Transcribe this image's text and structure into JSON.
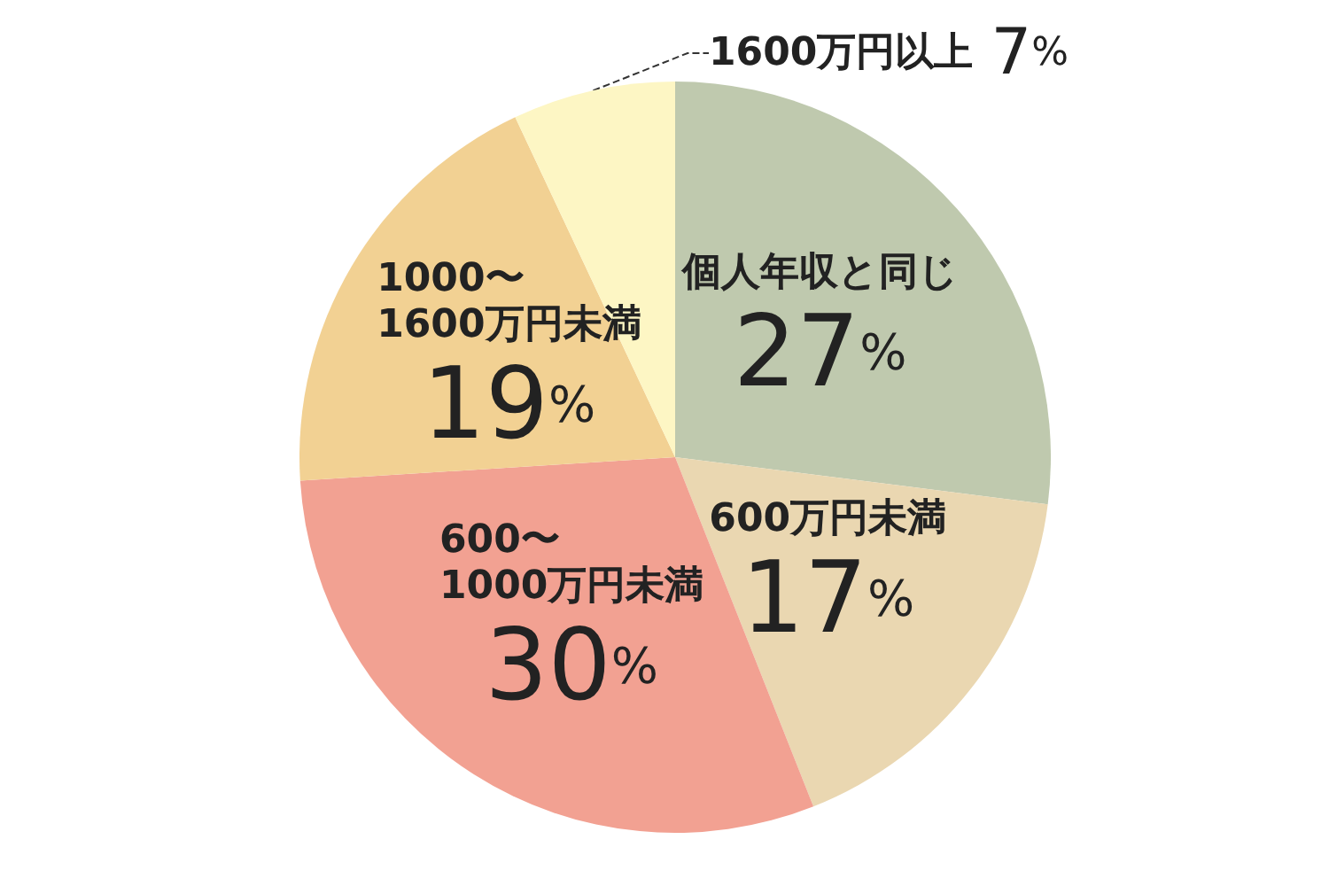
{
  "chart_data": {
    "type": "pie",
    "categories": [
      "個人年収と同じ",
      "600万円未満",
      "600〜\n1000万円未満",
      "1000〜\n1600万円未満",
      "1600万円以上"
    ],
    "values": [
      27,
      17,
      30,
      19,
      7
    ],
    "colors": [
      "#bfc9ae",
      "#ead7b1",
      "#f2a192",
      "#f2d193",
      "#fdf6c4"
    ],
    "value_labels": [
      "27%",
      "17%",
      "30%",
      "19%",
      "7%"
    ],
    "data_labels": true,
    "legend": false
  }
}
